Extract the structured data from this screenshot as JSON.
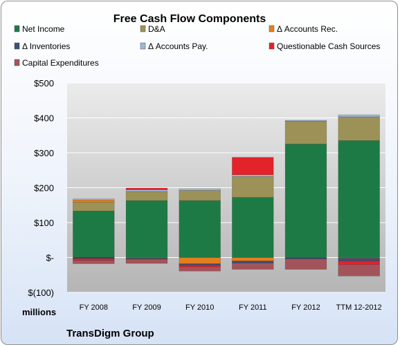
{
  "chart_data": {
    "type": "bar",
    "stacked": true,
    "title": "Free Cash Flow Components",
    "unit_label": "millions",
    "footer": "TransDigm Group",
    "categories": [
      "FY 2008",
      "FY 2009",
      "FY 2010",
      "FY 2011",
      "FY 2012",
      "TTM 12-2012"
    ],
    "ylim": [
      -100,
      500
    ],
    "yticks": [
      {
        "value": 500,
        "label": "$500"
      },
      {
        "value": 400,
        "label": "$400"
      },
      {
        "value": 300,
        "label": "$300"
      },
      {
        "value": 200,
        "label": "$200"
      },
      {
        "value": 100,
        "label": "$100"
      },
      {
        "value": 0,
        "label": "$-"
      },
      {
        "value": -100,
        "label": "$(100)"
      }
    ],
    "grid": true,
    "legend_position": "top",
    "series": [
      {
        "name": "Net Income",
        "color": "#1e7a45",
        "values": [
          133,
          163,
          163,
          172,
          325,
          335
        ]
      },
      {
        "name": "D&A",
        "color": "#9c9157",
        "values": [
          25,
          26,
          29,
          60,
          66,
          68
        ]
      },
      {
        "name": "Δ Accounts Rec.",
        "color": "#e57e1e",
        "values": [
          7,
          -2,
          -18,
          -10,
          -1,
          -2
        ]
      },
      {
        "name": "Δ Inventories",
        "color": "#3b4f7a",
        "values": [
          -3,
          -3,
          -4,
          -6,
          -3,
          -8
        ]
      },
      {
        "name": "Δ Accounts Pay.",
        "color": "#9db6d9",
        "values": [
          3,
          5,
          5,
          5,
          2,
          6
        ]
      },
      {
        "name": "Questionable Cash Sources",
        "color": "#e2232a",
        "values": [
          -5,
          5,
          -5,
          50,
          0,
          -10
        ]
      },
      {
        "name": "Capital Expenditures",
        "color": "#a3545a",
        "values": [
          -10,
          -12,
          -12,
          -18,
          -30,
          -33
        ]
      }
    ]
  }
}
